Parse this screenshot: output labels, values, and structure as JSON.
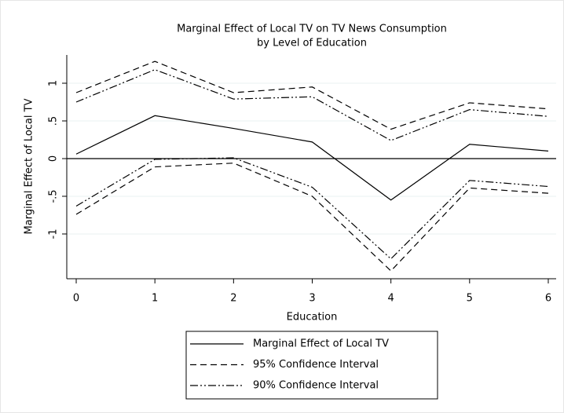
{
  "chart_data": {
    "type": "line",
    "title": [
      "Marginal Effect of Local TV on TV News Consumption",
      "by Level of Education"
    ],
    "x_label": "Education",
    "y_label": "Marginal Effect of Local TV",
    "x": [
      0,
      1,
      2,
      3,
      4,
      5,
      6
    ],
    "xlim": [
      -0.12,
      6.1
    ],
    "xticks": [
      0,
      1,
      2,
      3,
      4,
      5,
      6
    ],
    "ylim": [
      -1.594,
      1.375
    ],
    "yticks": [
      1,
      {
        "value": 0.5,
        "label": ".5"
      },
      0,
      {
        "value": -0.5,
        "label": "-.5"
      },
      -1
    ],
    "yline": 0,
    "grid": true,
    "series": [
      {
        "name": "Marginal Effect of Local TV",
        "color": "#000000",
        "dash": "solid",
        "values": [
          0.06,
          0.57,
          0.4,
          0.22,
          -0.55,
          0.19,
          0.1
        ]
      },
      {
        "name": "95% Confidence Interval",
        "color": "#000000",
        "dash": "dashed",
        "upper": [
          0.875,
          1.29,
          0.875,
          0.95,
          0.39,
          0.74,
          0.66
        ],
        "lower": [
          -0.74,
          -0.11,
          -0.06,
          -0.5,
          -1.49,
          -0.39,
          -0.46
        ]
      },
      {
        "name": "90% Confidence Interval",
        "color": "#000000",
        "dash": "dash-dot",
        "upper": [
          0.75,
          1.18,
          0.79,
          0.82,
          0.24,
          0.65,
          0.56
        ],
        "lower": [
          -0.63,
          -0.01,
          0.01,
          -0.38,
          -1.33,
          -0.29,
          -0.37
        ]
      }
    ]
  }
}
